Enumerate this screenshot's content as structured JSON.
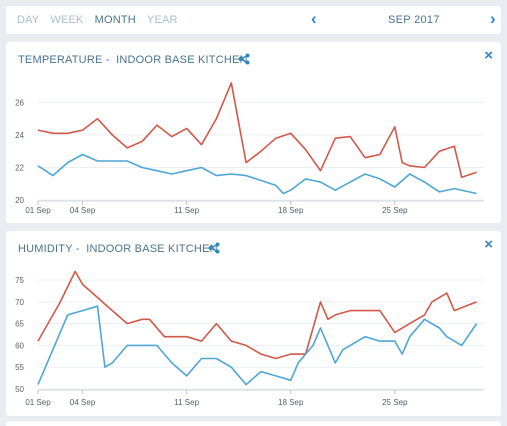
{
  "toolbar": {
    "periods": [
      "DAY",
      "WEEK",
      "MONTH",
      "YEAR"
    ],
    "active_period": "MONTH",
    "month_label": "SEP 2017",
    "prev_icon": "chevron-left-icon",
    "next_icon": "chevron-right-icon"
  },
  "cards": [
    {
      "title": "TEMPERATURE -  INDOOR BASE KITCHEN",
      "share_icon": "share-icon",
      "close_label": "×"
    },
    {
      "title": "HUMIDITY -  INDOOR BASE KITCHEN",
      "share_icon": "share-icon",
      "close_label": "×"
    }
  ],
  "colors": {
    "series_a": "#d2584a",
    "series_b": "#4ea6d6",
    "accent": "#2f86c0",
    "title": "#4a7390"
  },
  "chart_data": [
    {
      "type": "line",
      "title": "TEMPERATURE -  INDOOR BASE KITCHEN",
      "x_ticks": [
        "01 Sep",
        "04 Sep",
        "11 Sep",
        "18 Sep",
        "25 Sep"
      ],
      "x_tick_values": [
        1,
        4,
        11,
        18,
        25
      ],
      "xlim": [
        1,
        31
      ],
      "y_ticks": [
        20,
        22,
        24,
        26
      ],
      "ylim": [
        20,
        27.5
      ],
      "grid": true,
      "series": [
        {
          "color": "#d2584a",
          "x": [
            1,
            2,
            3,
            4,
            5,
            6,
            7,
            8,
            9,
            10,
            11,
            12,
            13,
            14,
            15,
            16,
            17,
            18,
            19,
            20,
            21,
            22,
            23,
            24,
            25,
            25.5,
            26,
            27,
            28,
            29,
            29.5,
            30.5
          ],
          "values": [
            24.3,
            24.1,
            24.1,
            24.3,
            25.0,
            24.0,
            23.2,
            23.6,
            24.6,
            23.9,
            24.4,
            23.4,
            25.0,
            27.2,
            22.3,
            23.0,
            23.8,
            24.1,
            23.1,
            21.8,
            23.8,
            23.9,
            22.6,
            22.8,
            24.5,
            22.3,
            22.1,
            22.0,
            23.0,
            23.3,
            21.4,
            21.7
          ]
        },
        {
          "color": "#4ea6d6",
          "x": [
            1,
            2,
            3,
            4,
            5,
            6,
            7,
            8,
            9,
            10,
            11,
            12,
            13,
            14,
            15,
            16,
            17,
            17.5,
            18,
            19,
            20,
            21,
            22,
            23,
            24,
            25,
            26,
            27,
            28,
            29,
            30.5
          ],
          "values": [
            22.1,
            21.5,
            22.3,
            22.8,
            22.4,
            22.4,
            22.4,
            22.0,
            21.8,
            21.6,
            21.8,
            22.0,
            21.5,
            21.6,
            21.5,
            21.2,
            20.9,
            20.4,
            20.6,
            21.3,
            21.1,
            20.6,
            21.1,
            21.6,
            21.3,
            20.8,
            21.6,
            21.1,
            20.5,
            20.7,
            20.4
          ]
        }
      ]
    },
    {
      "type": "line",
      "title": "HUMIDITY -  INDOOR BASE KITCHEN",
      "x_ticks": [
        "01 Sep",
        "04 Sep",
        "11 Sep",
        "18 Sep",
        "25 Sep"
      ],
      "x_tick_values": [
        1,
        4,
        11,
        18,
        25
      ],
      "xlim": [
        1,
        31
      ],
      "y_ticks": [
        50,
        55,
        60,
        65,
        70,
        75
      ],
      "ylim": [
        50,
        78
      ],
      "grid": true,
      "series": [
        {
          "color": "#d2584a",
          "x": [
            1,
            2.5,
            3.5,
            4,
            5,
            6,
            7,
            8,
            8.5,
            9.5,
            10,
            11,
            12,
            13,
            14,
            15,
            16,
            17,
            18,
            19,
            20,
            20.5,
            21,
            22,
            23,
            24,
            25,
            26,
            27,
            27.5,
            28.5,
            29,
            30.5
          ],
          "values": [
            61,
            70,
            77,
            74,
            71,
            68,
            65,
            66,
            66,
            62,
            62,
            62,
            61,
            65,
            61,
            60,
            58,
            57,
            58,
            58,
            70,
            66,
            67,
            68,
            68,
            68,
            63,
            65,
            67,
            70,
            72,
            68,
            70
          ]
        },
        {
          "color": "#4ea6d6",
          "x": [
            1,
            1.5,
            3,
            4,
            5,
            5.5,
            6,
            7,
            8,
            9,
            10,
            11,
            12,
            13,
            14,
            15,
            16,
            17,
            18,
            18.5,
            19.5,
            20,
            21,
            21.5,
            22,
            23,
            24,
            25,
            25.5,
            26,
            27,
            28,
            28.5,
            29.5,
            30.5
          ],
          "values": [
            51,
            55,
            67,
            68,
            69,
            55,
            56,
            60,
            60,
            60,
            56,
            53,
            57,
            57,
            55,
            51,
            54,
            53,
            52,
            56,
            60,
            64,
            56,
            59,
            60,
            62,
            61,
            61,
            58,
            62,
            66,
            64,
            62,
            60,
            65
          ]
        }
      ]
    }
  ]
}
